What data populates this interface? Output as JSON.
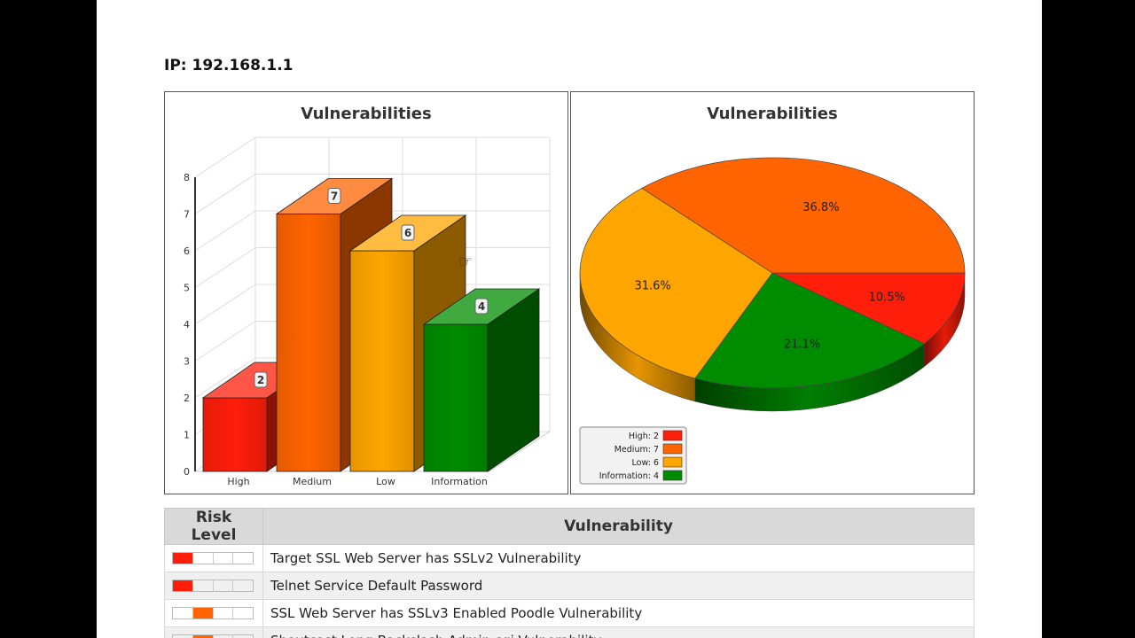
{
  "report": {
    "ip_label": "IP: 192.168.1.1"
  },
  "colors": {
    "high": "#ff1e0a",
    "medium": "#ff6400",
    "low": "#ffa500",
    "information": "#008c00"
  },
  "chart_data": [
    {
      "type": "bar",
      "title": "Vulnerabilities",
      "categories": [
        "High",
        "Medium",
        "Low",
        "Information"
      ],
      "values": [
        2,
        7,
        6,
        4
      ],
      "ylim": [
        0,
        8
      ],
      "yticks": [
        "0",
        "1",
        "2",
        "3",
        "4",
        "5",
        "6",
        "7",
        "8"
      ],
      "grid": true
    },
    {
      "type": "pie",
      "title": "Vulnerabilities",
      "labels": [
        "High",
        "Medium",
        "Low",
        "Information"
      ],
      "values": [
        2,
        7,
        6,
        4
      ],
      "percent_labels": [
        "10.5%",
        "36.8%",
        "31.6%",
        "21.1%"
      ],
      "legend": [
        "High: 2",
        "Medium: 7",
        "Low: 6",
        "Information: 4"
      ],
      "legend_position": "bottom-left"
    }
  ],
  "table": {
    "headers": [
      "Risk Level",
      "Vulnerability"
    ],
    "rows": [
      {
        "level": "high",
        "vulnerability": "Target SSL Web Server has SSLv2 Vulnerability"
      },
      {
        "level": "high",
        "vulnerability": "Telnet Service Default Password"
      },
      {
        "level": "medium",
        "vulnerability": "SSL Web Server has SSLv3 Enabled Poodle Vulnerability"
      },
      {
        "level": "medium",
        "vulnerability": "Shoutcast Long Backslash Admin.cgi Vulnerability"
      }
    ]
  }
}
